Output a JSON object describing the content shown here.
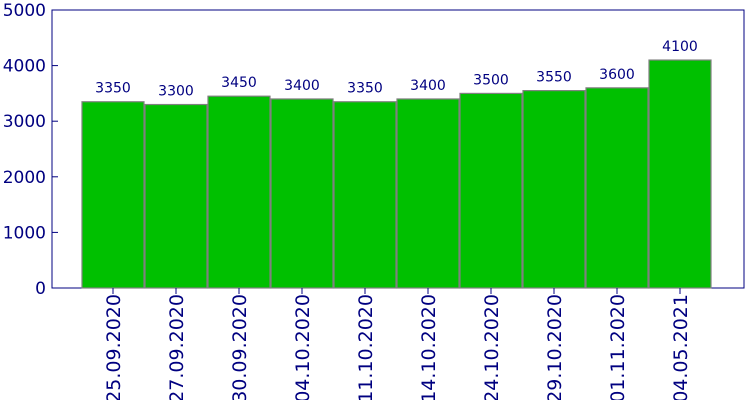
{
  "chart_data": {
    "type": "bar",
    "categories": [
      "25.09.2020",
      "27.09.2020",
      "30.09.2020",
      "04.10.2020",
      "11.10.2020",
      "14.10.2020",
      "24.10.2020",
      "29.10.2020",
      "01.11.2020",
      "04.05.2021"
    ],
    "values": [
      3350,
      3300,
      3450,
      3400,
      3350,
      3400,
      3500,
      3550,
      3600,
      4100
    ],
    "data_labels": [
      "3350",
      "3300",
      "3450",
      "3400",
      "3350",
      "3400",
      "3500",
      "3550",
      "3600",
      "4100"
    ],
    "y_ticks": [
      0,
      1000,
      2000,
      3000,
      4000,
      5000
    ],
    "y_tick_labels": [
      "0",
      "1000",
      "2000",
      "3000",
      "4000",
      "5000"
    ],
    "ylim": [
      0,
      5000
    ],
    "grid": false,
    "legend": "none",
    "colors": {
      "bar_fill": "#00c000",
      "bar_stroke": "#808080",
      "axis": "#000080",
      "text": "#000080",
      "background": "#ffffff"
    }
  }
}
